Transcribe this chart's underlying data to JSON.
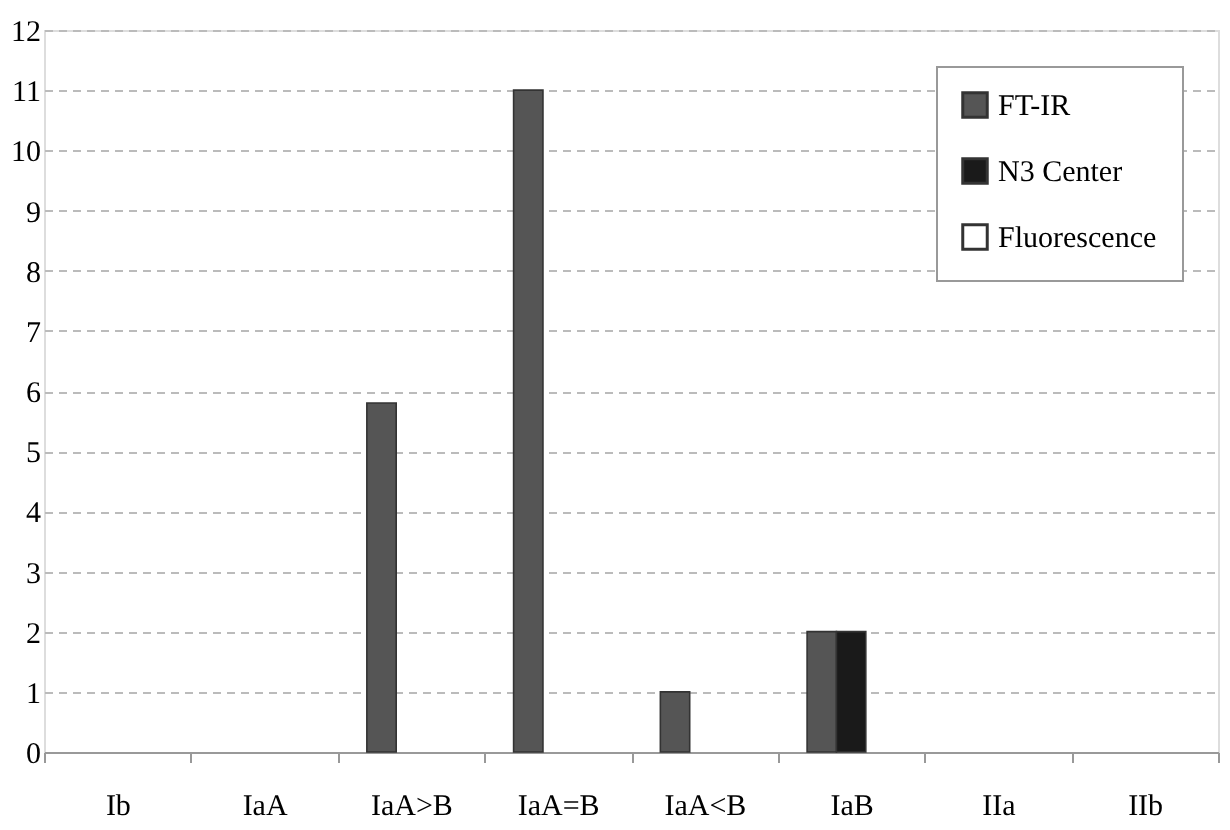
{
  "chart_data": {
    "type": "bar",
    "categories": [
      "Ib",
      "IaA",
      "IaA>B",
      "IaA=B",
      "IaA<B",
      "IaB",
      "IIa",
      "IIb"
    ],
    "series": [
      {
        "name": "FT-IR",
        "color": "#555555",
        "values": [
          0,
          0,
          5.8,
          11,
          1,
          2,
          0,
          0
        ]
      },
      {
        "name": "N3 Center",
        "color": "#1a1a1a",
        "values": [
          0,
          0,
          0,
          0,
          0,
          2,
          0,
          0
        ]
      },
      {
        "name": "Fluorescence",
        "color": "#ffffff",
        "values": [
          0,
          0,
          0,
          0,
          0,
          0,
          0,
          0
        ]
      }
    ],
    "ylim": [
      0,
      12
    ],
    "yticks": [
      0,
      1,
      2,
      3,
      4,
      5,
      6,
      7,
      8,
      9,
      10,
      11,
      12
    ],
    "grid": "y",
    "legend": "top right"
  }
}
